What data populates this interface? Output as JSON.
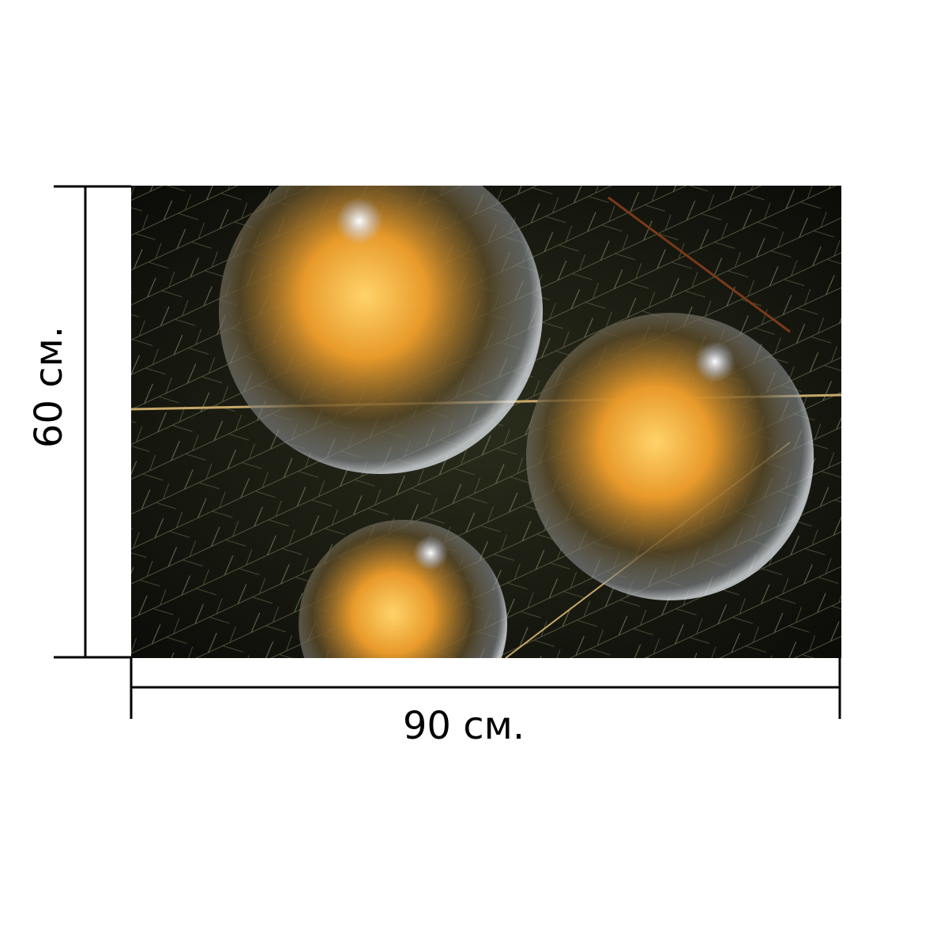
{
  "dimensions": {
    "width": "90 см.",
    "height": "60 см."
  }
}
